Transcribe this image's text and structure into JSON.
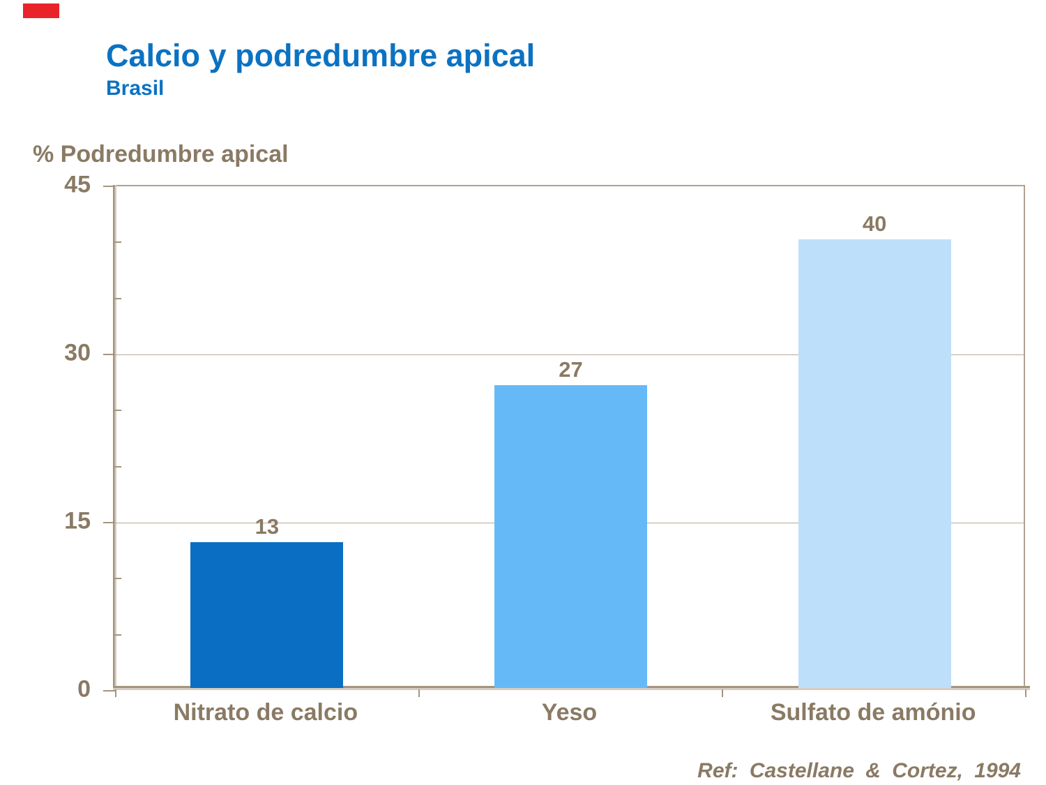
{
  "header": {
    "title": "Calcio y podredumbre apical",
    "subtitle": "Brasil"
  },
  "footer": {
    "reference": "Ref: Castellane & Cortez, 1994"
  },
  "theme": {
    "background": "#ffffff",
    "title_color": "#0b72c2",
    "text_color": "#8a7a64",
    "axis_color": "#b0a193",
    "gridline_color": "#b7a999",
    "accent_red": "#e8232a"
  },
  "chart_data": {
    "type": "bar",
    "title": "",
    "xlabel": "",
    "ylabel": "% Podredumbre apical",
    "categories": [
      "Nitrato de calcio",
      "Yeso",
      "Sulfato de amónio"
    ],
    "values": [
      13,
      27,
      40
    ],
    "bar_colors": [
      "#0a6fc2",
      "#66b9f7",
      "#bedff9"
    ],
    "ylim": [
      0,
      45
    ],
    "yticks": [
      0,
      15,
      30,
      45
    ],
    "minor_tick_step": 5,
    "grid": "horizontal-major",
    "legend": "none",
    "data_labels_shown": true
  }
}
